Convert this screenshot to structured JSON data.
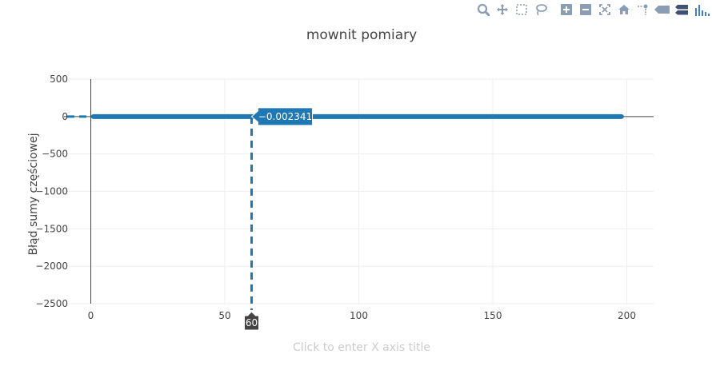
{
  "modebar": {
    "buttons": [
      {
        "name": "zoom-icon"
      },
      {
        "name": "pan-icon"
      },
      {
        "name": "box-select-icon"
      },
      {
        "name": "lasso-select-icon"
      },
      {
        "name": "zoom-in-icon"
      },
      {
        "name": "zoom-out-icon"
      },
      {
        "name": "autoscale-icon"
      },
      {
        "name": "reset-axes-icon"
      },
      {
        "name": "toggle-spike-lines-icon"
      },
      {
        "name": "show-closest-hover-icon"
      },
      {
        "name": "compare-hover-icon"
      },
      {
        "name": "plotly-logo-icon"
      }
    ],
    "colors": {
      "icon": "#8a9db5",
      "logo": "#3f4f75",
      "logo_bar": "#447adb"
    }
  },
  "chart_data": {
    "type": "line",
    "title": "mownit pomiary",
    "xlabel": "Click to enter X axis title",
    "ylabel": "Błąd sumy częściowej",
    "xlim": [
      -10,
      210
    ],
    "ylim": [
      -2550,
      500
    ],
    "xticks": [
      0,
      50,
      100,
      150,
      200
    ],
    "xtick_labels": [
      "0",
      "50",
      "100",
      "150",
      "200"
    ],
    "yticks": [
      500,
      0,
      -500,
      -1000,
      -1500,
      -2000,
      -2500
    ],
    "ytick_labels": [
      "500",
      "0",
      "−500",
      "−1000",
      "−1500",
      "−2000",
      "−2500"
    ],
    "grid": true,
    "series": [
      {
        "x_start": 1,
        "x_end": 198,
        "y": 0,
        "color": "#1f77b4"
      }
    ],
    "hover": {
      "x": 60,
      "x_label": "60",
      "y": -0.002341,
      "y_label": "−0.002341"
    }
  }
}
